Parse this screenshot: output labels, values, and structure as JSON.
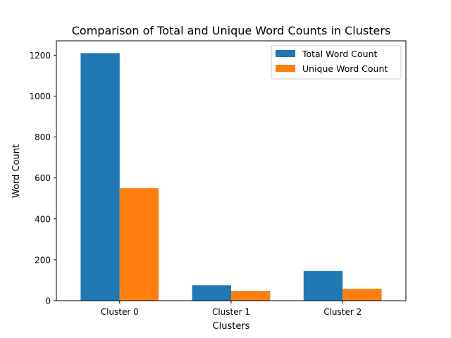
{
  "chart_data": {
    "type": "bar",
    "title": "Comparison of Total and Unique Word Counts in Clusters",
    "xlabel": "Clusters",
    "ylabel": "Word Count",
    "categories": [
      "Cluster 0",
      "Cluster 1",
      "Cluster 2"
    ],
    "series": [
      {
        "name": "Total Word Count",
        "values": [
          1210,
          75,
          145
        ],
        "color": "#1f77b4"
      },
      {
        "name": "Unique Word Count",
        "values": [
          550,
          48,
          58
        ],
        "color": "#ff7f0e"
      }
    ],
    "ylim": [
      0,
      1270
    ],
    "yticks": [
      0,
      200,
      400,
      600,
      800,
      1000,
      1200
    ],
    "legend_position": "top-right",
    "grid": false
  }
}
